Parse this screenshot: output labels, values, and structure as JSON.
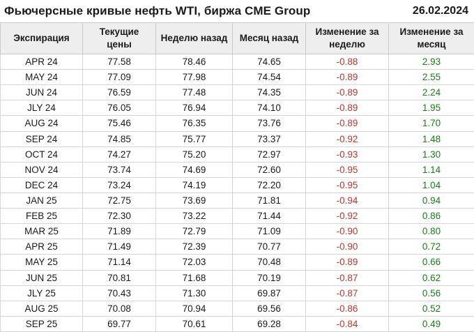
{
  "header": {
    "title": "Фьючерсные кривые нефть WTI, биржа CME Group",
    "date": "26.02.2024"
  },
  "colors": {
    "negative": "#c0342c",
    "positive": "#168216",
    "header_bg": "#eeeeee",
    "border": "#d6d6d6"
  },
  "chart_data": {
    "type": "table",
    "title": "Фьючерсные кривые нефть WTI, биржа CME Group",
    "date": "26.02.2024",
    "columns": [
      "Экспирация",
      "Текущие цены",
      "Неделю назад",
      "Месяц назад",
      "Изменение за неделю",
      "Изменение за месяц"
    ],
    "rows": [
      [
        "APR 24",
        "77.58",
        "78.46",
        "74.65",
        "-0.88",
        "2.93"
      ],
      [
        "MAY 24",
        "77.09",
        "77.98",
        "74.54",
        "-0.89",
        "2.55"
      ],
      [
        "JUN 24",
        "76.59",
        "77.48",
        "74.35",
        "-0.89",
        "2.24"
      ],
      [
        "JLY 24",
        "76.05",
        "76.94",
        "74.10",
        "-0.89",
        "1.95"
      ],
      [
        "AUG 24",
        "75.46",
        "76.35",
        "73.76",
        "-0.89",
        "1.70"
      ],
      [
        "SEP 24",
        "74.85",
        "75.77",
        "73.37",
        "-0.92",
        "1.48"
      ],
      [
        "OCT 24",
        "74.27",
        "75.20",
        "72.97",
        "-0.93",
        "1.30"
      ],
      [
        "NOV 24",
        "73.74",
        "74.69",
        "72.60",
        "-0.95",
        "1.14"
      ],
      [
        "DEC 24",
        "73.24",
        "74.19",
        "72.20",
        "-0.95",
        "1.04"
      ],
      [
        "JAN 25",
        "72.75",
        "73.69",
        "71.81",
        "-0.94",
        "0.94"
      ],
      [
        "FEB 25",
        "72.30",
        "73.22",
        "71.44",
        "-0.92",
        "0.86"
      ],
      [
        "MAR 25",
        "71.89",
        "72.79",
        "71.09",
        "-0.90",
        "0.80"
      ],
      [
        "APR 25",
        "71.49",
        "72.39",
        "70.77",
        "-0.90",
        "0.72"
      ],
      [
        "MAY 25",
        "71.14",
        "72.03",
        "70.48",
        "-0.89",
        "0.66"
      ],
      [
        "JUN 25",
        "70.81",
        "71.68",
        "70.19",
        "-0.87",
        "0.62"
      ],
      [
        "JLY 25",
        "70.43",
        "71.30",
        "69.87",
        "-0.87",
        "0.56"
      ],
      [
        "AUG 25",
        "70.08",
        "70.94",
        "69.56",
        "-0.86",
        "0.52"
      ],
      [
        "SEP 25",
        "69.77",
        "70.61",
        "69.28",
        "-0.84",
        "0.49"
      ]
    ]
  }
}
